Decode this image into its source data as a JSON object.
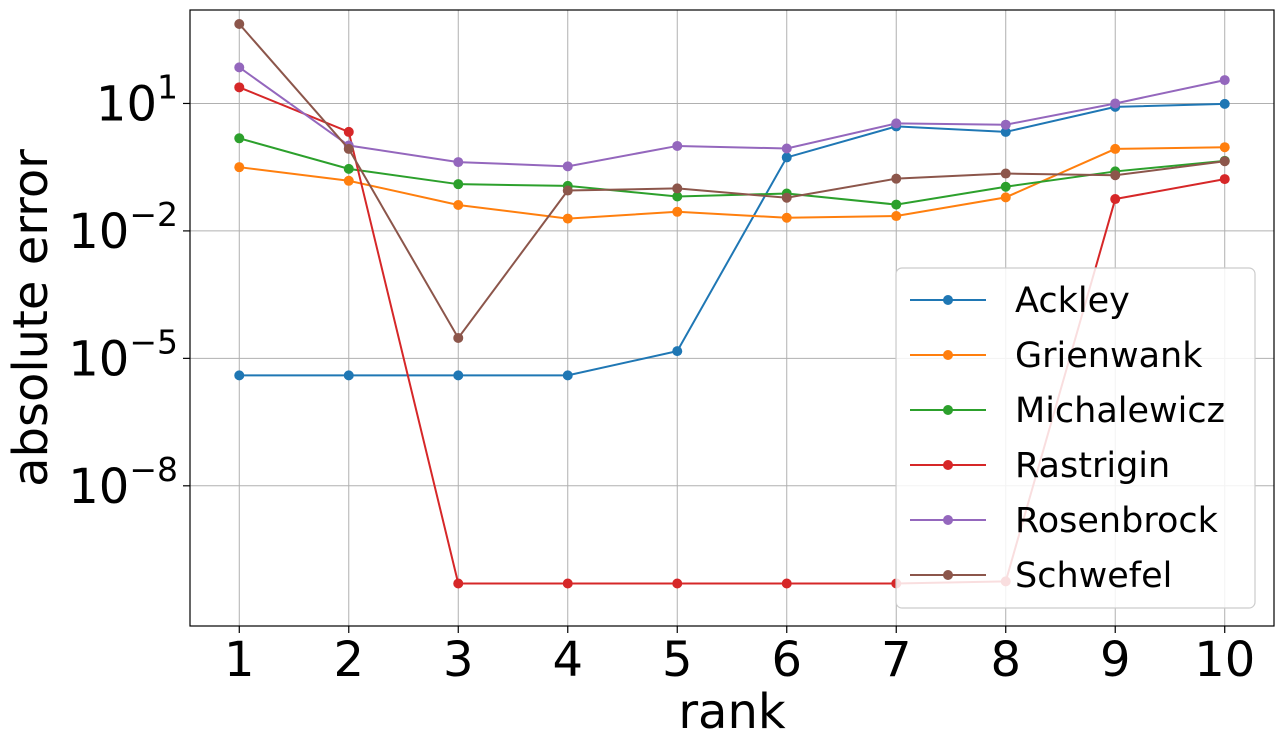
{
  "chart_data": {
    "type": "line",
    "title": "",
    "xlabel": "rank",
    "ylabel": "absolute error",
    "yscale": "log",
    "x": [
      1,
      2,
      3,
      4,
      5,
      6,
      7,
      8,
      9,
      10
    ],
    "xlim": [
      0.55,
      10.45
    ],
    "ylim_log10": [
      -11.3,
      3.2
    ],
    "x_ticks": [
      "1",
      "2",
      "3",
      "4",
      "5",
      "6",
      "7",
      "8",
      "9",
      "10"
    ],
    "y_ticks": [
      {
        "log10": 1,
        "base": "10",
        "exp": "1"
      },
      {
        "log10": -2,
        "base": "10",
        "exp": "−2"
      },
      {
        "log10": -5,
        "base": "10",
        "exp": "−5"
      },
      {
        "log10": -8,
        "base": "10",
        "exp": "−8"
      }
    ],
    "grid": true,
    "legend_position": "lower-right",
    "series": [
      {
        "name": "Ackley",
        "color": "#1f77b4",
        "log10_values": [
          -5.4,
          -5.4,
          -5.4,
          -5.4,
          -4.83,
          -0.27,
          0.46,
          0.33,
          0.92,
          0.99
        ]
      },
      {
        "name": "Grienwank",
        "color": "#ff7f0e",
        "log10_values": [
          -0.5,
          -0.82,
          -1.39,
          -1.71,
          -1.55,
          -1.69,
          -1.65,
          -1.21,
          -0.07,
          -0.03
        ]
      },
      {
        "name": "Michalewicz",
        "color": "#2ca02c",
        "log10_values": [
          0.18,
          -0.54,
          -0.9,
          -0.94,
          -1.19,
          -1.12,
          -1.38,
          -0.96,
          -0.6,
          -0.35
        ]
      },
      {
        "name": "Rastrigin",
        "color": "#d62728",
        "log10_values": [
          1.38,
          0.33,
          -10.3,
          -10.3,
          -10.3,
          -10.3,
          -10.3,
          -10.25,
          -1.25,
          -0.78
        ]
      },
      {
        "name": "Rosenbrock",
        "color": "#9467bd",
        "log10_values": [
          1.85,
          0.01,
          -0.38,
          -0.48,
          0.0,
          -0.06,
          0.53,
          0.5,
          1.0,
          1.55
        ]
      },
      {
        "name": "Schwefel",
        "color": "#8c564b",
        "log10_values": [
          2.87,
          -0.07,
          -4.52,
          -1.05,
          -1.0,
          -1.22,
          -0.77,
          -0.65,
          -0.69,
          -0.36
        ]
      }
    ]
  }
}
